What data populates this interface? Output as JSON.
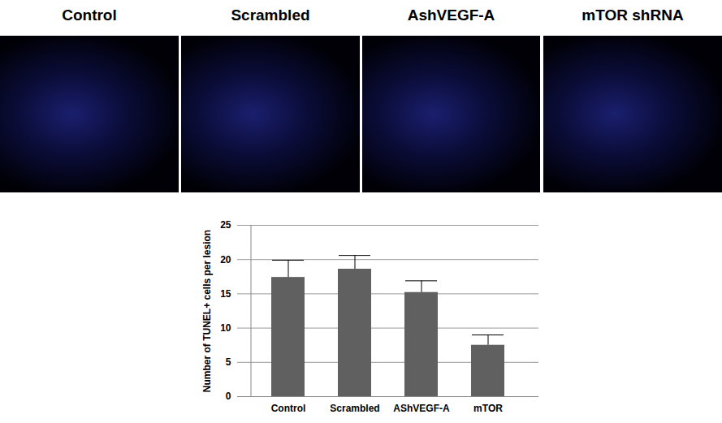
{
  "panels": {
    "titles": [
      "Control",
      "Scrambled",
      "AshVEGF-A",
      "mTOR shRNA"
    ]
  },
  "chart_data": {
    "type": "bar",
    "categories": [
      "Control",
      "Scrambled",
      "AShVEGF-A",
      "mTOR"
    ],
    "values": [
      17.4,
      18.6,
      15.2,
      7.5
    ],
    "error": [
      2.5,
      2.0,
      1.7,
      1.5
    ],
    "color": "#606060",
    "y_label": "Number of TUNEL+ cells per lesion",
    "ylim": [
      0,
      25
    ],
    "yticks": [
      0,
      5,
      10,
      15,
      20,
      25
    ],
    "grid": true
  }
}
